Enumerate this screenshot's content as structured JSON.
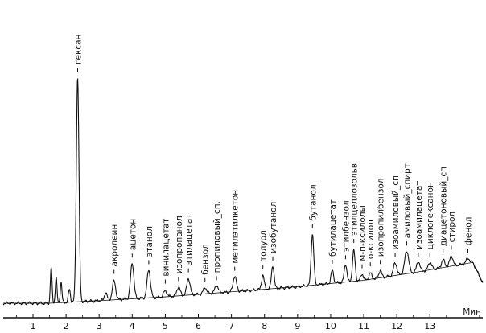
{
  "chart_data": {
    "type": "line",
    "xlabel": "Мин",
    "xlim": [
      0.1,
      14.6
    ],
    "ylim": [
      0,
      100
    ],
    "grid": false,
    "x_ticks": [
      1,
      2,
      3,
      4,
      5,
      6,
      7,
      8,
      9,
      10,
      11,
      12,
      13
    ],
    "x_tick_labels": [
      "1",
      "2",
      "3",
      "4",
      "5",
      "6",
      "7",
      "8",
      "9",
      "10",
      "11",
      "12",
      "13"
    ],
    "peaks": [
      {
        "label": "гексан",
        "x": 2.35,
        "height": 88,
        "width": 0.04
      },
      {
        "label": "акролеин",
        "x": 3.45,
        "height": 7.5,
        "width": 0.05
      },
      {
        "label": "ацетон",
        "x": 4.0,
        "height": 14,
        "width": 0.05
      },
      {
        "label": "этанол",
        "x": 4.5,
        "height": 11,
        "width": 0.05
      },
      {
        "label": "винилацетат",
        "x": 5.0,
        "height": 2.5,
        "width": 0.05
      },
      {
        "label": "изопропанол",
        "x": 5.4,
        "height": 3.5,
        "width": 0.05
      },
      {
        "label": "этилацетат",
        "x": 5.7,
        "height": 6.5,
        "width": 0.05
      },
      {
        "label": "бензол",
        "x": 6.2,
        "height": 2.5,
        "width": 0.05
      },
      {
        "label": "пропиловый_сп.",
        "x": 6.55,
        "height": 3,
        "width": 0.05
      },
      {
        "label": "метилэтилкетон",
        "x": 7.1,
        "height": 6,
        "width": 0.05
      },
      {
        "label": "толуол",
        "x": 7.95,
        "height": 5.5,
        "width": 0.04
      },
      {
        "label": "изобутанол",
        "x": 8.25,
        "height": 9,
        "width": 0.04
      },
      {
        "label": "бутанол",
        "x": 9.45,
        "height": 20,
        "width": 0.04
      },
      {
        "label": "бутилацетат",
        "x": 10.05,
        "height": 5,
        "width": 0.04
      },
      {
        "label": "этилбензол",
        "x": 10.45,
        "height": 7,
        "width": 0.04
      },
      {
        "label": "этилцеллозольв",
        "x": 10.7,
        "height": 12,
        "width": 0.04
      },
      {
        "label": "м-п-ксилолы",
        "x": 10.95,
        "height": 2.5,
        "width": 0.04
      },
      {
        "label": "о-ксилол",
        "x": 11.2,
        "height": 2.5,
        "width": 0.04
      },
      {
        "label": "изопропилбензол",
        "x": 11.5,
        "height": 3,
        "width": 0.04
      },
      {
        "label": "изоамиловый_сп",
        "x": 11.95,
        "height": 5,
        "width": 0.05
      },
      {
        "label": "амиловый_спирт",
        "x": 12.3,
        "height": 9,
        "width": 0.06
      },
      {
        "label": "изоамилацетат",
        "x": 12.65,
        "height": 4,
        "width": 0.05
      },
      {
        "label": "циклогексанон",
        "x": 13.0,
        "height": 3,
        "width": 0.05
      },
      {
        "label": "диацетоновый_сп",
        "x": 13.4,
        "height": 3,
        "width": 0.05
      },
      {
        "label": "стирол",
        "x": 13.65,
        "height": 4,
        "width": 0.05
      },
      {
        "label": "фенол",
        "x": 14.15,
        "height": 2,
        "width": 0.05
      }
    ],
    "unlabeled_peaks": [
      {
        "x": 1.55,
        "height": 14,
        "width": 0.025
      },
      {
        "x": 1.7,
        "height": 10,
        "width": 0.025
      },
      {
        "x": 1.85,
        "height": 8,
        "width": 0.025
      },
      {
        "x": 2.1,
        "height": 5,
        "width": 0.03
      },
      {
        "x": 3.2,
        "height": 3,
        "width": 0.04
      }
    ],
    "baseline": [
      [
        0.1,
        0
      ],
      [
        1.5,
        0
      ],
      [
        3.0,
        1
      ],
      [
        5.0,
        2.5
      ],
      [
        7.0,
        4.5
      ],
      [
        9.0,
        6.5
      ],
      [
        11.0,
        9
      ],
      [
        12.5,
        12
      ],
      [
        14.3,
        16
      ],
      [
        14.6,
        8
      ]
    ]
  }
}
